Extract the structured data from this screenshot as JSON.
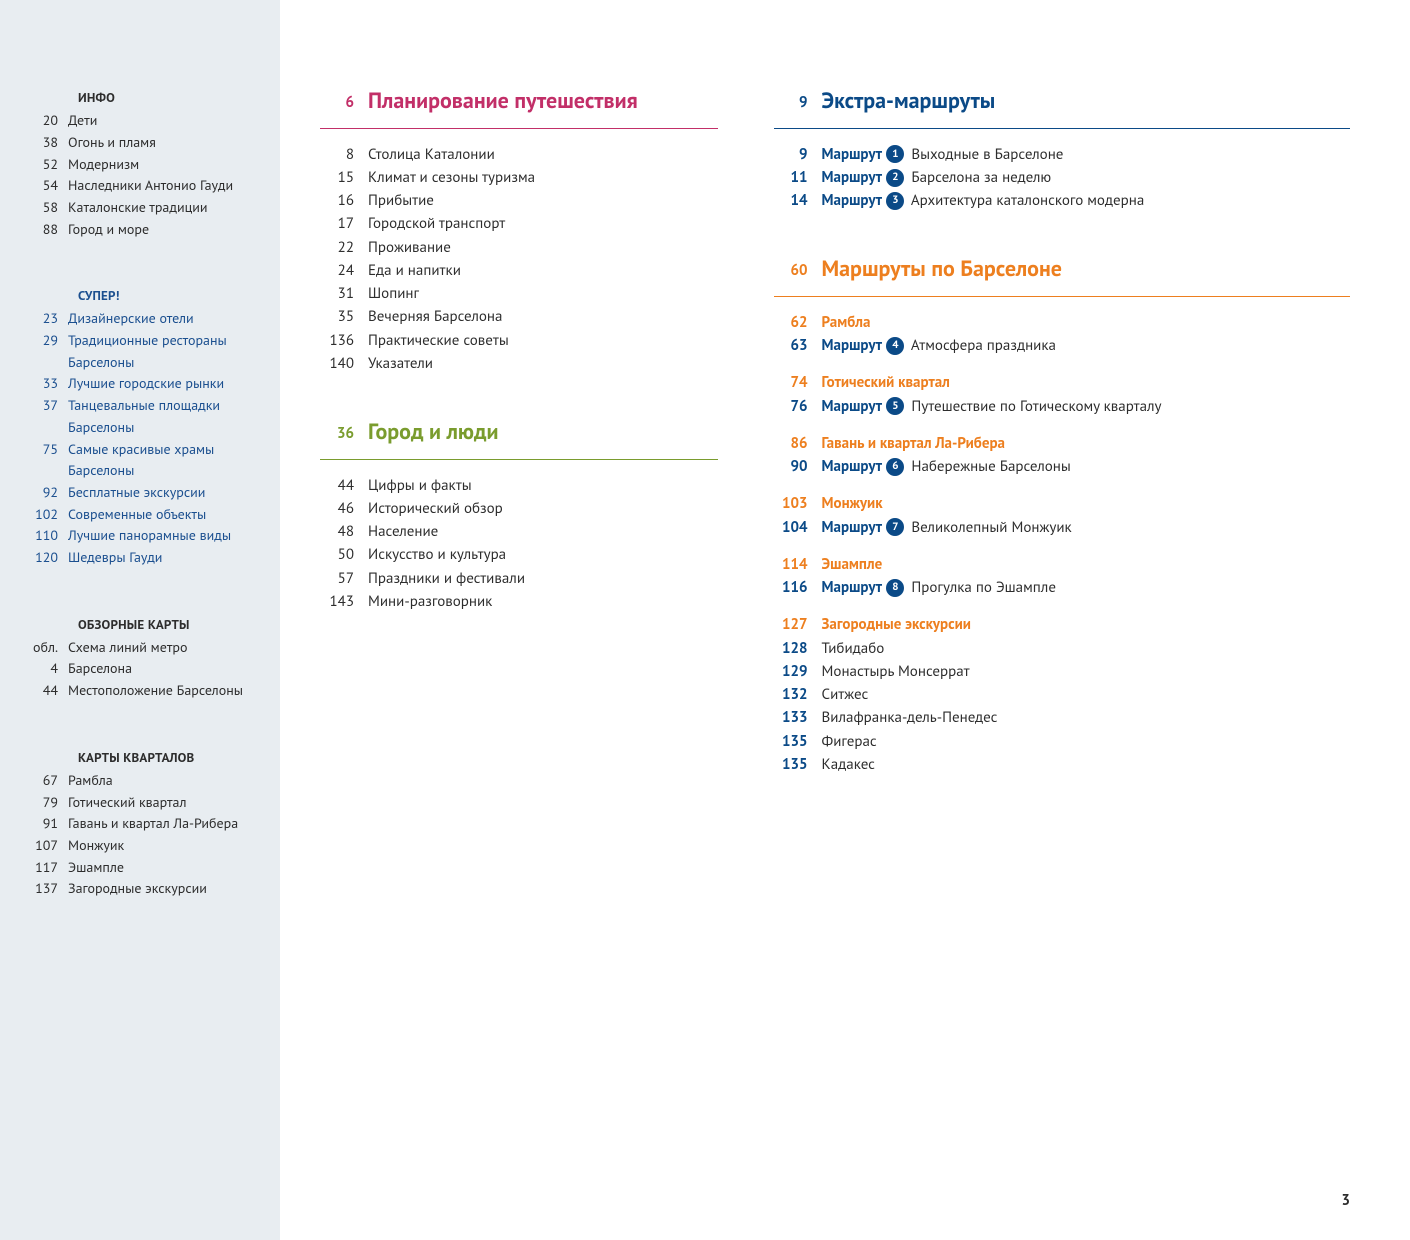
{
  "pageNumber": "3",
  "colors": {
    "sidebar_bg": "#e8edf1",
    "magenta": "#c22f68",
    "green": "#7a9c2e",
    "blue": "#0b4a87",
    "orange": "#ed7f1f",
    "text": "#2d2d2d",
    "side_blue": "#1b4f8f"
  },
  "sidebar": {
    "info": {
      "heading": "ИНФО",
      "items": [
        {
          "pg": "20",
          "txt": "Дети"
        },
        {
          "pg": "38",
          "txt": "Огонь и пламя"
        },
        {
          "pg": "52",
          "txt": "Модернизм"
        },
        {
          "pg": "54",
          "txt": "Наследники Антонио Гауди"
        },
        {
          "pg": "58",
          "txt": "Каталонские традиции"
        },
        {
          "pg": "88",
          "txt": "Город и море"
        }
      ]
    },
    "super": {
      "heading": "СУПЕР!",
      "items": [
        {
          "pg": "23",
          "txt": "Дизайнерские отели"
        },
        {
          "pg": "29",
          "txt": "Традиционные рестораны Барселоны"
        },
        {
          "pg": "33",
          "txt": "Лучшие городские рынки"
        },
        {
          "pg": "37",
          "txt": "Танцевальные площадки Барселоны"
        },
        {
          "pg": "75",
          "txt": "Самые красивые храмы Барселоны"
        },
        {
          "pg": "92",
          "txt": "Бесплатные экскурсии"
        },
        {
          "pg": "102",
          "txt": "Современные объекты"
        },
        {
          "pg": "110",
          "txt": "Лучшие панорамные виды"
        },
        {
          "pg": "120",
          "txt": "Шедевры Гауди"
        }
      ]
    },
    "overview_maps": {
      "heading": "ОБЗОРНЫЕ КАРТЫ",
      "items": [
        {
          "pg": "обл.",
          "txt": "Схема линий метро"
        },
        {
          "pg": "4",
          "txt": "Барселона"
        },
        {
          "pg": "44",
          "txt": "Местоположение Барселоны"
        }
      ]
    },
    "quarter_maps": {
      "heading": "КАРТЫ КВАРТАЛОВ",
      "items": [
        {
          "pg": "67",
          "txt": "Рамбла"
        },
        {
          "pg": "79",
          "txt": "Готический квартал"
        },
        {
          "pg": "91",
          "txt": "Гавань и квартал Ла-Рибера"
        },
        {
          "pg": "107",
          "txt": "Монжуик"
        },
        {
          "pg": "117",
          "txt": "Эшампле"
        },
        {
          "pg": "137",
          "txt": "Загородные экскурсии"
        }
      ]
    }
  },
  "sections": {
    "planning": {
      "pg": "6",
      "title": "Планирование путешествия",
      "items": [
        {
          "pg": "8",
          "txt": "Столица Каталонии"
        },
        {
          "pg": "15",
          "txt": "Климат и сезоны туризма"
        },
        {
          "pg": "16",
          "txt": "Прибытие"
        },
        {
          "pg": "17",
          "txt": "Городской транспорт"
        },
        {
          "pg": "22",
          "txt": "Проживание"
        },
        {
          "pg": "24",
          "txt": "Еда и напитки"
        },
        {
          "pg": "31",
          "txt": "Шопинг"
        },
        {
          "pg": "35",
          "txt": "Вечерняя Барселона"
        },
        {
          "pg": "136",
          "txt": "Практические советы"
        },
        {
          "pg": "140",
          "txt": "Указатели"
        }
      ]
    },
    "city_people": {
      "pg": "36",
      "title": "Город и люди",
      "items": [
        {
          "pg": "44",
          "txt": "Цифры и факты"
        },
        {
          "pg": "46",
          "txt": "Исторический обзор"
        },
        {
          "pg": "48",
          "txt": "Население"
        },
        {
          "pg": "50",
          "txt": "Искусство и культура"
        },
        {
          "pg": "57",
          "txt": "Праздники и фестивали"
        },
        {
          "pg": "143",
          "txt": "Мини-разговорник"
        }
      ]
    },
    "extra_routes": {
      "pg": "9",
      "title": "Экстра-маршруты",
      "routeLabel": "Маршрут",
      "items": [
        {
          "pg": "9",
          "num": "1",
          "txt": "Выходные в Барселоне"
        },
        {
          "pg": "11",
          "num": "2",
          "txt": "Барселона за неделю"
        },
        {
          "pg": "14",
          "num": "3",
          "txt": "Архитектура каталонского модерна"
        }
      ]
    },
    "barcelona_routes": {
      "pg": "60",
      "title": "Маршруты по Барселоне",
      "routeLabel": "Маршрут",
      "groups": [
        {
          "pg": "62",
          "heading": "Рамбла",
          "route": {
            "pg": "63",
            "num": "4",
            "txt": "Атмосфера праздника"
          }
        },
        {
          "pg": "74",
          "heading": "Готический квартал",
          "route": {
            "pg": "76",
            "num": "5",
            "txt": "Путешествие по Готическому кварталу"
          }
        },
        {
          "pg": "86",
          "heading": "Гавань и квартал Ла-Рибера",
          "route": {
            "pg": "90",
            "num": "6",
            "txt": "Набережные Барселоны"
          }
        },
        {
          "pg": "103",
          "heading": "Монжуик",
          "route": {
            "pg": "104",
            "num": "7",
            "txt": "Великолепный Монжуик"
          }
        },
        {
          "pg": "114",
          "heading": "Эшампле",
          "route": {
            "pg": "116",
            "num": "8",
            "txt": "Прогулка по Эшампле"
          }
        }
      ],
      "excursions": {
        "pg": "127",
        "heading": "Загородные экскурсии",
        "items": [
          {
            "pg": "128",
            "txt": "Тибидабо"
          },
          {
            "pg": "129",
            "txt": "Монастырь Монсеррат"
          },
          {
            "pg": "132",
            "txt": "Ситжес"
          },
          {
            "pg": "133",
            "txt": "Вилафранка-дель-Пенедес"
          },
          {
            "pg": "135",
            "txt": "Фигерас"
          },
          {
            "pg": "135",
            "txt": "Кадакес"
          }
        ]
      }
    }
  }
}
